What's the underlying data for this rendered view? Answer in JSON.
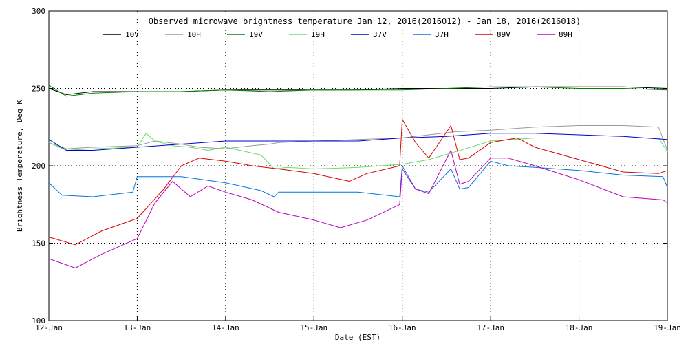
{
  "chart_data": {
    "type": "line",
    "title": "Observed microwave brightness temperature Jan 12, 2016(2016012) - Jan 18, 2016(2016018)",
    "xlabel": "Date (EST)",
    "ylabel": "Brightness Temperature, Deg K",
    "ylim": [
      100,
      300
    ],
    "xlim": [
      0,
      7
    ],
    "yticks": [
      100,
      150,
      200,
      250,
      300
    ],
    "xtick_values": [
      0,
      1,
      2,
      3,
      4,
      5,
      6,
      7
    ],
    "xtick_labels": [
      "12-Jan",
      "13-Jan",
      "14-Jan",
      "15-Jan",
      "16-Jan",
      "17-Jan",
      "18-Jan",
      "19-Jan"
    ],
    "grid": "dotted",
    "legend_position": "top",
    "series": [
      {
        "name": "10V",
        "color": "#000000",
        "x": [
          0,
          0.2,
          0.5,
          1.0,
          1.5,
          2.0,
          2.5,
          3.0,
          3.5,
          4.0,
          4.5,
          5.0,
          5.5,
          6.0,
          6.5,
          7.0
        ],
        "y": [
          250,
          246,
          248,
          248,
          248,
          249,
          249,
          249,
          249,
          250,
          250,
          250,
          251,
          251,
          251,
          250
        ]
      },
      {
        "name": "10H",
        "color": "#999999",
        "x": [
          0,
          0.2,
          0.5,
          1.0,
          1.2,
          1.5,
          1.7,
          2.0,
          2.3,
          2.5,
          2.6,
          3.0,
          3.5,
          4.0,
          4.3,
          4.6,
          5.0,
          5.5,
          6.0,
          6.5,
          6.9,
          7.0
        ],
        "y": [
          215,
          211,
          212,
          213,
          216,
          214,
          212,
          211,
          213,
          214,
          215,
          216,
          217,
          218,
          220,
          222,
          223,
          225,
          226,
          226,
          225,
          210
        ]
      },
      {
        "name": "19V",
        "color": "#008000",
        "x": [
          0,
          0.2,
          0.5,
          1.0,
          1.5,
          2.0,
          2.5,
          3.0,
          3.5,
          4.0,
          4.5,
          5.0,
          5.5,
          6.0,
          6.5,
          7.0
        ],
        "y": [
          252,
          245,
          247,
          248,
          248,
          249,
          248,
          249,
          249,
          249,
          250,
          251,
          251,
          250,
          250,
          249
        ]
      },
      {
        "name": "19H",
        "color": "#66dd66",
        "x": [
          0,
          0.2,
          0.5,
          1.0,
          1.1,
          1.2,
          1.4,
          1.6,
          1.8,
          2.0,
          2.4,
          2.55,
          2.7,
          3.0,
          3.5,
          4.0,
          4.3,
          4.6,
          5.0,
          5.5,
          6.0,
          6.5,
          6.9,
          7.0
        ],
        "y": [
          215,
          210,
          211,
          212,
          221,
          216,
          213,
          212,
          210,
          212,
          207,
          198,
          199,
          198,
          199,
          201,
          204,
          209,
          216,
          218,
          218,
          218,
          218,
          209
        ]
      },
      {
        "name": "37V",
        "color": "#0000cc",
        "x": [
          0,
          0.2,
          0.5,
          1.0,
          1.5,
          2.0,
          2.5,
          3.0,
          3.5,
          4.0,
          4.5,
          5.0,
          5.5,
          6.0,
          6.5,
          7.0
        ],
        "y": [
          217,
          210,
          210,
          212,
          214,
          216,
          216,
          216,
          216,
          218,
          219,
          221,
          221,
          220,
          219,
          217
        ]
      },
      {
        "name": "37H",
        "color": "#0077dd",
        "x": [
          0,
          0.15,
          0.5,
          0.95,
          1.0,
          1.3,
          1.5,
          2.0,
          2.4,
          2.55,
          2.6,
          3.0,
          3.5,
          3.97,
          4.0,
          4.15,
          4.3,
          4.55,
          4.65,
          4.75,
          5.0,
          5.2,
          5.5,
          6.0,
          6.5,
          6.95,
          7.0
        ],
        "y": [
          189,
          181,
          180,
          183,
          193,
          193,
          193,
          189,
          184,
          180,
          183,
          183,
          183,
          180,
          200,
          185,
          183,
          198,
          185,
          186,
          203,
          200,
          199,
          197,
          194,
          193,
          186
        ]
      },
      {
        "name": "89V",
        "color": "#dd0000",
        "x": [
          0,
          0.3,
          0.6,
          1.0,
          1.3,
          1.5,
          1.7,
          2.0,
          2.3,
          2.6,
          3.0,
          3.4,
          3.6,
          3.97,
          4.0,
          4.15,
          4.3,
          4.55,
          4.65,
          4.75,
          5.0,
          5.3,
          5.5,
          6.0,
          6.5,
          6.9,
          7.0
        ],
        "y": [
          154,
          149,
          158,
          166,
          185,
          200,
          205,
          203,
          200,
          198,
          195,
          190,
          195,
          200,
          230,
          215,
          205,
          226,
          204,
          205,
          215,
          218,
          212,
          204,
          196,
          195,
          197
        ]
      },
      {
        "name": "89H",
        "color": "#bb00bb",
        "x": [
          0,
          0.3,
          0.6,
          1.0,
          1.2,
          1.4,
          1.6,
          1.8,
          2.0,
          2.3,
          2.6,
          3.0,
          3.3,
          3.6,
          3.97,
          4.0,
          4.15,
          4.3,
          4.55,
          4.65,
          4.75,
          5.0,
          5.2,
          5.5,
          6.0,
          6.5,
          6.95,
          7.0
        ],
        "y": [
          140,
          134,
          143,
          153,
          176,
          190,
          180,
          187,
          183,
          178,
          170,
          165,
          160,
          165,
          175,
          198,
          185,
          182,
          210,
          188,
          190,
          205,
          205,
          200,
          191,
          180,
          178,
          176
        ]
      }
    ]
  }
}
